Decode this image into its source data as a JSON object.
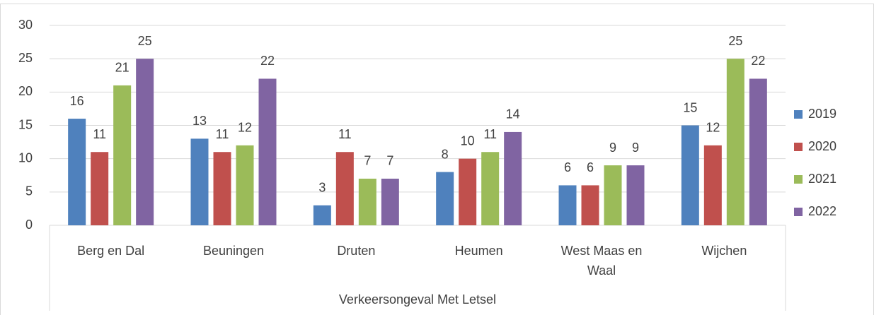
{
  "chart_data": {
    "type": "bar",
    "categories": [
      "Berg en Dal",
      "Beuningen",
      "Druten",
      "Heumen",
      "West Maas en Waal",
      "Wijchen"
    ],
    "category_group": "Verkeersongeval Met Letsel",
    "series": [
      {
        "name": "2019",
        "color": "#4f81bd",
        "values": [
          16,
          13,
          3,
          8,
          6,
          15
        ]
      },
      {
        "name": "2020",
        "color": "#c0504d",
        "values": [
          11,
          11,
          11,
          10,
          6,
          12
        ]
      },
      {
        "name": "2021",
        "color": "#9bbb59",
        "values": [
          21,
          12,
          7,
          11,
          9,
          25
        ]
      },
      {
        "name": "2022",
        "color": "#8064a2",
        "values": [
          25,
          22,
          7,
          14,
          9,
          22
        ]
      }
    ],
    "ylim": [
      0,
      30
    ],
    "yticks": [
      0,
      5,
      10,
      15,
      20,
      25,
      30
    ],
    "grid": true,
    "legend": "right"
  }
}
